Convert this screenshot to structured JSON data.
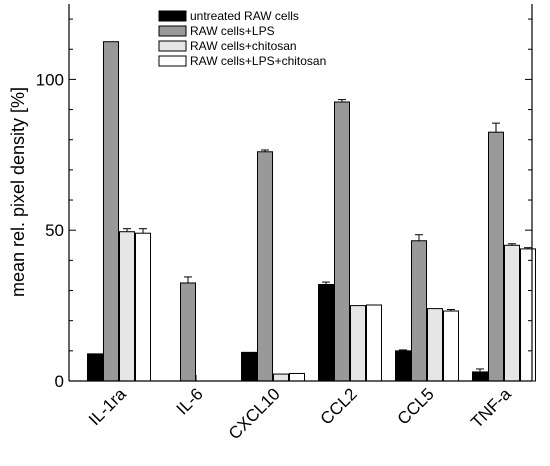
{
  "chart_data": {
    "type": "bar",
    "ylabel": "mean rel. pixel density [%]",
    "xlabel": "",
    "ylim": [
      0,
      125
    ],
    "yticks": [
      0,
      50,
      100
    ],
    "categories": [
      "IL-1ra",
      "IL-6",
      "CXCL10",
      "CCL2",
      "CCL5",
      "TNF-a"
    ],
    "series": [
      {
        "name": "untreated RAW cells",
        "color": "#000000",
        "values": [
          9,
          0,
          9.5,
          32,
          10,
          3
        ],
        "errors": [
          0,
          0,
          0,
          0.8,
          0.3,
          1.0
        ]
      },
      {
        "name": "RAW cells+LPS",
        "color": "#999999",
        "values": [
          112.5,
          32.5,
          76,
          92.5,
          46.5,
          82.5
        ],
        "errors": [
          0,
          2.0,
          0.6,
          0.8,
          2.0,
          3.0
        ]
      },
      {
        "name": "RAW cells+chitosan",
        "color": "#e6e6e6",
        "values": [
          49.5,
          0,
          2.3,
          25,
          24,
          45
        ],
        "errors": [
          1.0,
          0,
          0,
          0,
          0,
          0.5
        ]
      },
      {
        "name": "RAW cells+LPS+chitosan",
        "color": "#ffffff",
        "values": [
          49,
          0,
          2.5,
          25.2,
          23.2,
          43.8
        ],
        "errors": [
          1.5,
          0,
          0,
          0,
          0.5,
          0.4
        ]
      }
    ],
    "legend_position": "top-right",
    "grid": false
  }
}
